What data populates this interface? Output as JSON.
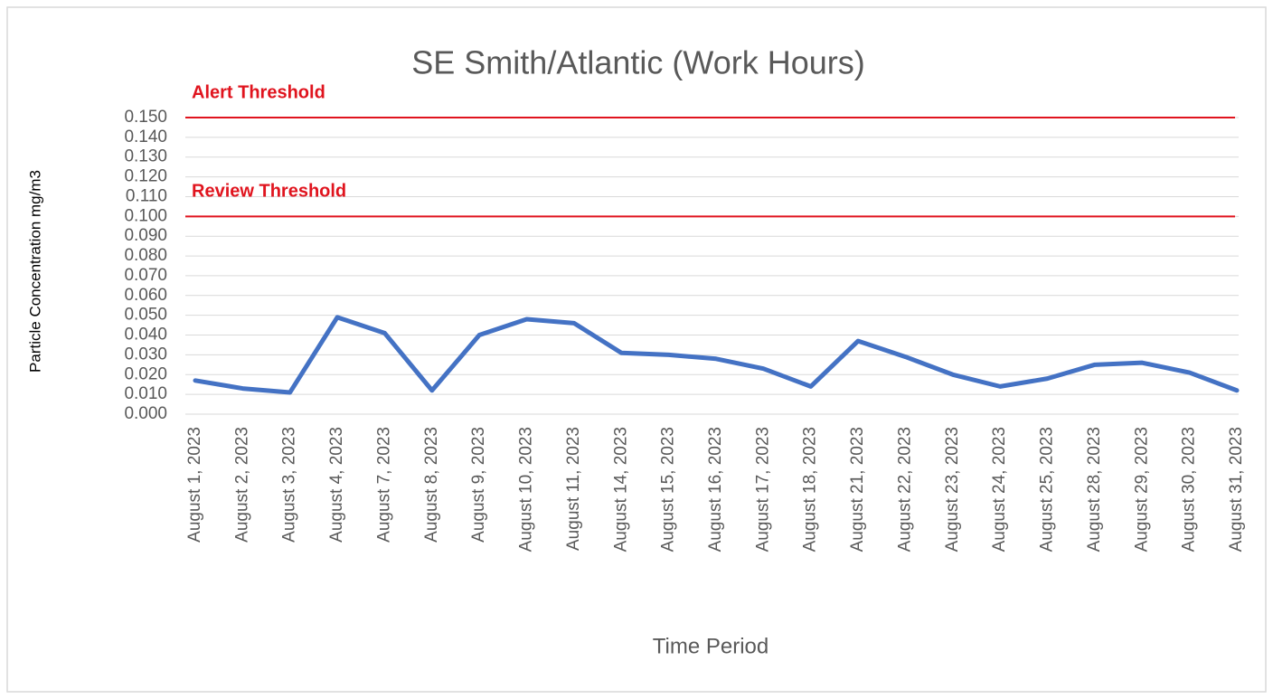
{
  "chart_data": {
    "type": "line",
    "title": "SE Smith/Atlantic (Work Hours)",
    "x_label": "Time Period",
    "y_label": "Particle Concentration mg/m3",
    "categories": [
      "August 1, 2023",
      "August 2, 2023",
      "August 3, 2023",
      "August 4, 2023",
      "August 7, 2023",
      "August 8, 2023",
      "August 9, 2023",
      "August 10, 2023",
      "August 11, 2023",
      "August 14, 2023",
      "August 15, 2023",
      "August 16, 2023",
      "August 17, 2023",
      "August 18, 2023",
      "August 21, 2023",
      "August 22, 2023",
      "August 23, 2023",
      "August 24, 2023",
      "August 25, 2023",
      "August 28, 2023",
      "August 29, 2023",
      "August 30, 2023",
      "August 31, 2023"
    ],
    "series": [
      {
        "color": "#4472c4",
        "values": [
          0.017,
          0.013,
          0.011,
          0.049,
          0.041,
          0.012,
          0.04,
          0.048,
          0.046,
          0.031,
          0.03,
          0.028,
          0.023,
          0.014,
          0.037,
          0.029,
          0.02,
          0.014,
          0.018,
          0.025,
          0.026,
          0.021,
          0.012
        ]
      }
    ],
    "ylim": [
      0,
      0.15
    ],
    "yticks": [
      {
        "value": 0,
        "label": "0.000"
      },
      {
        "value": 0.01,
        "label": "0.010"
      },
      {
        "value": 0.02,
        "label": "0.020"
      },
      {
        "value": 0.03,
        "label": "0.030"
      },
      {
        "value": 0.04,
        "label": "0.040"
      },
      {
        "value": 0.05,
        "label": "0.050"
      },
      {
        "value": 0.06,
        "label": "0.060"
      },
      {
        "value": 0.07,
        "label": "0.070"
      },
      {
        "value": 0.08,
        "label": "0.080"
      },
      {
        "value": 0.09,
        "label": "0.090"
      },
      {
        "value": 0.1,
        "label": "0.100"
      },
      {
        "value": 0.11,
        "label": "0.110"
      },
      {
        "value": 0.12,
        "label": "0.120"
      },
      {
        "value": 0.13,
        "label": "0.130"
      },
      {
        "value": 0.14,
        "label": "0.140"
      },
      {
        "value": 0.15,
        "label": "0.150"
      }
    ],
    "grid": true,
    "thresholds": [
      {
        "label": "Alert Threshold",
        "value": 0.15,
        "color": "#e0141e"
      },
      {
        "label": "Review Threshold",
        "value": 0.1,
        "color": "#e0141e"
      }
    ]
  }
}
